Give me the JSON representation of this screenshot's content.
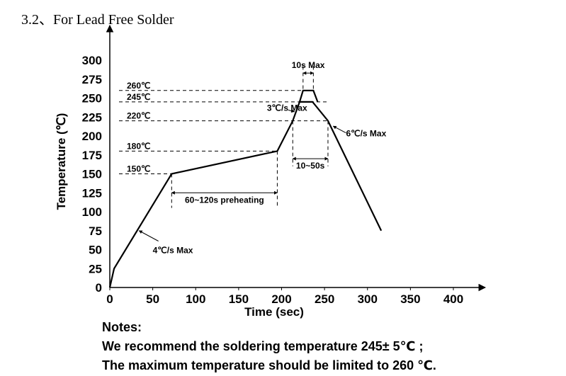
{
  "heading": "3.2、For Lead Free Solder",
  "chart_data": {
    "type": "line",
    "xlabel": "Time (sec)",
    "ylabel": "Temperature (℃)",
    "xlim": [
      0,
      400
    ],
    "ylim": [
      0,
      300
    ],
    "x_ticks": [
      0,
      50,
      100,
      150,
      200,
      250,
      300,
      350,
      400
    ],
    "y_ticks": [
      0,
      25,
      50,
      75,
      100,
      125,
      150,
      175,
      200,
      225,
      250,
      275,
      300
    ],
    "grid": false,
    "series": [
      {
        "x": [
          0,
          5,
          72,
          195,
          213,
          221,
          236,
          254,
          316
        ],
        "y": [
          0,
          25,
          150,
          180,
          220,
          245,
          245,
          220,
          75
        ]
      },
      {
        "x": [
          221,
          225,
          237,
          242
        ],
        "y": [
          245,
          260,
          260,
          245
        ]
      }
    ],
    "reference_lines": [
      {
        "label": "260℃",
        "y": 260,
        "x_end": 236
      },
      {
        "label": "245℃",
        "y": 245,
        "x_end": 254
      },
      {
        "label": "220℃",
        "y": 220,
        "x_end": 254
      },
      {
        "label": "180℃",
        "y": 180,
        "x_end": 195
      },
      {
        "label": "150℃",
        "y": 150,
        "x_end": 72
      }
    ],
    "vertical_lines": [
      {
        "x": 72,
        "y_from": 150,
        "y_to": 105
      },
      {
        "x": 195,
        "y_from": 180,
        "y_to": 105
      },
      {
        "x": 213,
        "y_from": 220,
        "y_to": 160
      },
      {
        "x": 254,
        "y_from": 220,
        "y_to": 160
      },
      {
        "x": 225,
        "y_from": 292,
        "y_to": 260
      },
      {
        "x": 237,
        "y_from": 292,
        "y_to": 260
      }
    ],
    "spans": [
      {
        "label": "60~120s preheating",
        "x_from": 72,
        "x_to": 195,
        "y": 125
      },
      {
        "label": "10~50s",
        "x_from": 213,
        "x_to": 254,
        "y": 170
      },
      {
        "label": "10s Max",
        "x_from": 225,
        "x_to": 237,
        "y": 283
      }
    ],
    "annotations": [
      {
        "text": "4℃/s Max",
        "x": 50,
        "y": 50,
        "arrow_to": [
          34,
          75
        ]
      },
      {
        "text": "3℃/s Max",
        "x": 183,
        "y": 238,
        "arrow_to": [
          215,
          232
        ]
      },
      {
        "text": "6℃/s Max",
        "x": 275,
        "y": 204,
        "arrow_to": [
          260,
          213
        ]
      }
    ]
  },
  "notes": {
    "title": "Notes:",
    "line1": "We recommend the soldering temperature 245± 5℃ ;",
    "line2": "The maximum temperature should be limited to 260 ℃."
  }
}
